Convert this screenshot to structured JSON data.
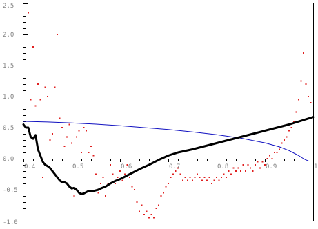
{
  "chart_data": {
    "type": "scatter",
    "title": "",
    "xlabel": "",
    "ylabel": "",
    "xlim": [
      0.4,
      1.0
    ],
    "ylim": [
      -1.0,
      2.5
    ],
    "x_ticks": [
      0.4,
      0.5,
      0.6,
      0.7,
      0.8,
      0.9,
      1.0
    ],
    "y_ticks": [
      -1.0,
      -0.5,
      0.0,
      0.5,
      1.0,
      1.5,
      2.0,
      2.5
    ],
    "x_tick_labels": [
      "0.4",
      "0.5",
      "0.6",
      "0.7",
      "0.8",
      "0.9",
      "1.0"
    ],
    "y_tick_labels": [
      "-1.0",
      "-0.5",
      "0.0",
      "0.5",
      "1.0",
      "1.5",
      "2.0",
      "2.5"
    ],
    "grid": false,
    "series": [
      {
        "kind": "scatter",
        "color": "#e02020",
        "x": [
          0.41,
          0.415,
          0.42,
          0.425,
          0.43,
          0.435,
          0.44,
          0.445,
          0.45,
          0.455,
          0.46,
          0.465,
          0.47,
          0.475,
          0.48,
          0.485,
          0.49,
          0.495,
          0.5,
          0.505,
          0.51,
          0.515,
          0.52,
          0.525,
          0.53,
          0.535,
          0.54,
          0.545,
          0.55,
          0.555,
          0.56,
          0.565,
          0.57,
          0.575,
          0.58,
          0.585,
          0.59,
          0.595,
          0.6,
          0.605,
          0.61,
          0.615,
          0.62,
          0.625,
          0.63,
          0.635,
          0.64,
          0.645,
          0.65,
          0.655,
          0.66,
          0.665,
          0.67,
          0.675,
          0.68,
          0.685,
          0.69,
          0.695,
          0.7,
          0.705,
          0.71,
          0.715,
          0.72,
          0.725,
          0.73,
          0.735,
          0.74,
          0.745,
          0.75,
          0.755,
          0.76,
          0.765,
          0.77,
          0.775,
          0.78,
          0.785,
          0.79,
          0.795,
          0.8,
          0.805,
          0.81,
          0.815,
          0.82,
          0.825,
          0.83,
          0.835,
          0.84,
          0.845,
          0.85,
          0.855,
          0.86,
          0.865,
          0.87,
          0.875,
          0.88,
          0.885,
          0.89,
          0.895,
          0.9,
          0.905,
          0.91,
          0.915,
          0.92,
          0.925,
          0.93,
          0.935,
          0.94,
          0.945,
          0.95,
          0.955,
          0.96,
          0.965,
          0.97,
          0.975,
          0.98,
          0.985,
          0.99,
          0.995
        ],
        "y": [
          2.35,
          0.95,
          1.8,
          0.85,
          1.2,
          0.95,
          -0.3,
          1.15,
          1.0,
          0.3,
          0.4,
          1.15,
          2.0,
          0.65,
          0.5,
          0.2,
          0.35,
          0.55,
          0.25,
          -0.6,
          0.35,
          0.45,
          0.1,
          0.5,
          0.45,
          0.1,
          0.2,
          0.05,
          -0.25,
          -0.55,
          -0.4,
          -0.3,
          -0.6,
          -0.4,
          -0.1,
          -0.25,
          -0.4,
          -0.3,
          -0.2,
          -0.35,
          -0.25,
          -0.1,
          -0.3,
          -0.45,
          -0.5,
          -0.7,
          -0.85,
          -0.75,
          -0.9,
          -0.85,
          -0.95,
          -0.9,
          -0.95,
          -0.8,
          -0.75,
          -0.6,
          -0.55,
          -0.45,
          -0.4,
          -0.3,
          -0.25,
          -0.2,
          -0.15,
          -0.25,
          -0.35,
          -0.3,
          -0.35,
          -0.3,
          -0.35,
          -0.3,
          -0.25,
          -0.3,
          -0.35,
          -0.3,
          -0.35,
          -0.3,
          -0.4,
          -0.35,
          -0.3,
          -0.35,
          -0.3,
          -0.25,
          -0.3,
          -0.2,
          -0.25,
          -0.15,
          -0.2,
          -0.15,
          -0.2,
          -0.1,
          -0.2,
          -0.1,
          -0.15,
          -0.2,
          -0.1,
          -0.05,
          -0.15,
          -0.05,
          -0.1,
          0.0,
          0.05,
          0.0,
          0.1,
          0.1,
          0.15,
          0.25,
          0.3,
          0.35,
          0.45,
          0.5,
          0.6,
          0.75,
          0.95,
          1.25,
          1.7,
          1.2,
          1.0,
          0.9
        ]
      },
      {
        "kind": "line",
        "color": "#1010c0",
        "width": 1,
        "x": [
          0.4,
          0.45,
          0.5,
          0.55,
          0.6,
          0.65,
          0.7,
          0.75,
          0.8,
          0.85,
          0.9,
          0.93,
          0.95,
          0.97,
          0.98,
          0.985,
          0.99
        ],
        "y": [
          0.6,
          0.59,
          0.575,
          0.555,
          0.53,
          0.5,
          0.47,
          0.43,
          0.385,
          0.33,
          0.255,
          0.19,
          0.13,
          0.05,
          0.0,
          -0.02,
          -0.035
        ]
      },
      {
        "kind": "line",
        "color": "#000000",
        "width": 3,
        "x": [
          0.4,
          0.405,
          0.41,
          0.415,
          0.42,
          0.425,
          0.43,
          0.435,
          0.44,
          0.445,
          0.45,
          0.455,
          0.46,
          0.465,
          0.47,
          0.475,
          0.48,
          0.485,
          0.49,
          0.495,
          0.5,
          0.505,
          0.51,
          0.515,
          0.52,
          0.525,
          0.53,
          0.535,
          0.54,
          0.545,
          0.55,
          0.555,
          0.56,
          0.57,
          0.58,
          0.59,
          0.6,
          0.62,
          0.64,
          0.66,
          0.68,
          0.7,
          0.72,
          0.75,
          0.8,
          0.85,
          0.9,
          0.95,
          1.0
        ],
        "y": [
          0.55,
          0.5,
          0.5,
          0.35,
          0.32,
          0.38,
          0.15,
          0.05,
          -0.05,
          -0.1,
          -0.12,
          -0.15,
          -0.2,
          -0.25,
          -0.3,
          -0.35,
          -0.38,
          -0.38,
          -0.4,
          -0.45,
          -0.48,
          -0.47,
          -0.5,
          -0.55,
          -0.57,
          -0.56,
          -0.54,
          -0.52,
          -0.52,
          -0.52,
          -0.51,
          -0.5,
          -0.48,
          -0.45,
          -0.4,
          -0.36,
          -0.33,
          -0.25,
          -0.17,
          -0.1,
          -0.02,
          0.05,
          0.1,
          0.15,
          0.25,
          0.35,
          0.45,
          0.55,
          0.67
        ]
      }
    ]
  }
}
